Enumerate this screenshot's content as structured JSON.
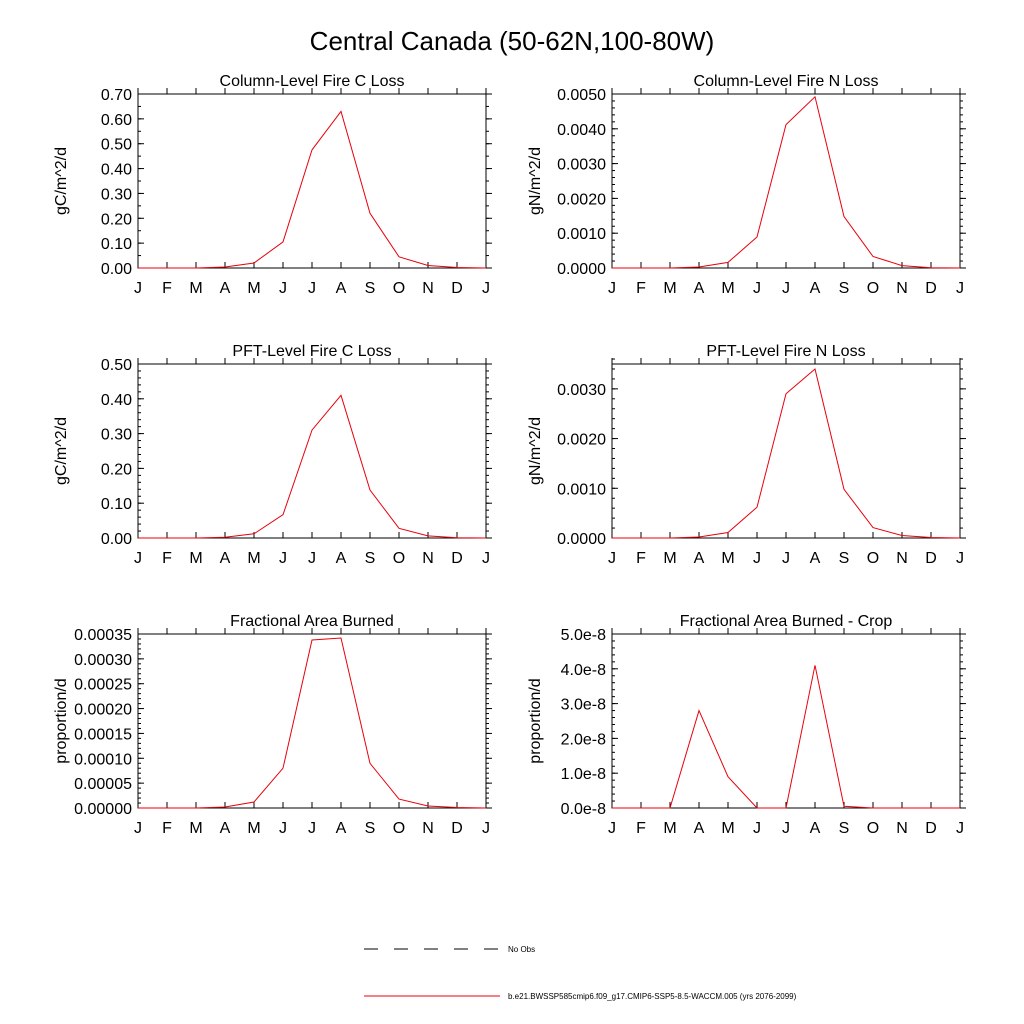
{
  "title": "Central Canada (50-62N,100-80W)",
  "months": [
    "J",
    "F",
    "M",
    "A",
    "M",
    "J",
    "J",
    "A",
    "S",
    "O",
    "N",
    "D",
    "J"
  ],
  "line_color": "#e8000b",
  "chart_data": [
    {
      "type": "line",
      "title": "Column-Level Fire C Loss",
      "ylabel": "gC/m^2/d",
      "ylim": [
        0,
        0.7
      ],
      "yticks": [
        0,
        0.1,
        0.2,
        0.3,
        0.4,
        0.5,
        0.6,
        0.7
      ],
      "yticklabels": [
        "0.00",
        "0.10",
        "0.20",
        "0.30",
        "0.40",
        "0.50",
        "0.60",
        "0.70"
      ],
      "y_minor_step": 0.05,
      "values": [
        0,
        0,
        0,
        0.004,
        0.02,
        0.105,
        0.475,
        0.63,
        0.22,
        0.045,
        0.01,
        0.002,
        0
      ]
    },
    {
      "type": "line",
      "title": "Column-Level Fire N Loss",
      "ylabel": "gN/m^2/d",
      "ylim": [
        0,
        0.005
      ],
      "yticks": [
        0,
        0.001,
        0.002,
        0.003,
        0.004,
        0.005
      ],
      "yticklabels": [
        "0.0000",
        "0.0010",
        "0.0020",
        "0.0030",
        "0.0040",
        "0.0050"
      ],
      "y_minor_step": 0.0002,
      "values": [
        0,
        0,
        0,
        3e-05,
        0.00016,
        0.00089,
        0.00412,
        0.00492,
        0.00148,
        0.00033,
        7e-05,
        1e-05,
        0
      ]
    },
    {
      "type": "line",
      "title": "PFT-Level Fire C Loss",
      "ylabel": "gC/m^2/d",
      "ylim": [
        0,
        0.5
      ],
      "yticks": [
        0,
        0.1,
        0.2,
        0.3,
        0.4,
        0.5
      ],
      "yticklabels": [
        "0.00",
        "0.10",
        "0.20",
        "0.30",
        "0.40",
        "0.50"
      ],
      "y_minor_step": 0.02,
      "values": [
        0,
        0,
        0,
        0.002,
        0.012,
        0.067,
        0.31,
        0.41,
        0.138,
        0.028,
        0.006,
        0.001,
        0
      ]
    },
    {
      "type": "line",
      "title": "PFT-Level Fire N Loss",
      "ylabel": "gN/m^2/d",
      "ylim": [
        0,
        0.0035
      ],
      "yticks": [
        0,
        0.001,
        0.002,
        0.003
      ],
      "yticklabels": [
        "0.0000",
        "0.0010",
        "0.0020",
        "0.0030"
      ],
      "y_minor_step": 0.0002,
      "values": [
        0,
        0,
        0,
        2e-05,
        0.00011,
        0.00062,
        0.0029,
        0.0034,
        0.00098,
        0.00021,
        5e-05,
        1e-05,
        0
      ]
    },
    {
      "type": "line",
      "title": "Fractional Area Burned",
      "ylabel": "proportion/d",
      "ylim": [
        0,
        0.00035
      ],
      "yticks": [
        0,
        5e-05,
        0.0001,
        0.00015,
        0.0002,
        0.00025,
        0.0003,
        0.00035
      ],
      "yticklabels": [
        "0.00000",
        "0.00005",
        "0.00010",
        "0.00015",
        "0.00020",
        "0.00025",
        "0.00030",
        "0.00035"
      ],
      "y_minor_step": 1e-05,
      "values": [
        0,
        0,
        0,
        2e-06,
        1.2e-05,
        8e-05,
        0.000338,
        0.000342,
        9e-05,
        1.8e-05,
        4e-06,
        1e-06,
        0
      ]
    },
    {
      "type": "line",
      "title": "Fractional Area Burned - Crop",
      "ylabel": "proportion/d",
      "ylim": [
        0,
        5e-08
      ],
      "yticks": [
        0,
        1e-08,
        2e-08,
        3e-08,
        4e-08,
        5e-08
      ],
      "yticklabels": [
        "0.0e-8",
        "1.0e-8",
        "2.0e-8",
        "3.0e-8",
        "4.0e-8",
        "5.0e-8"
      ],
      "y_minor_step": 2e-09,
      "values": [
        0,
        0,
        0,
        2.8e-08,
        9e-09,
        0,
        0,
        4.1e-08,
        5e-10,
        0,
        0,
        0,
        0
      ]
    }
  ],
  "legend": [
    {
      "label": "No Obs",
      "style": "dashed",
      "color": "#000000"
    },
    {
      "label": "b.e21.BWSSP585cmip6.f09_g17.CMIP6-SSP5-8.5-WACCM.005 (yrs 2076-2099)",
      "style": "solid",
      "color": "#e8000b"
    }
  ]
}
